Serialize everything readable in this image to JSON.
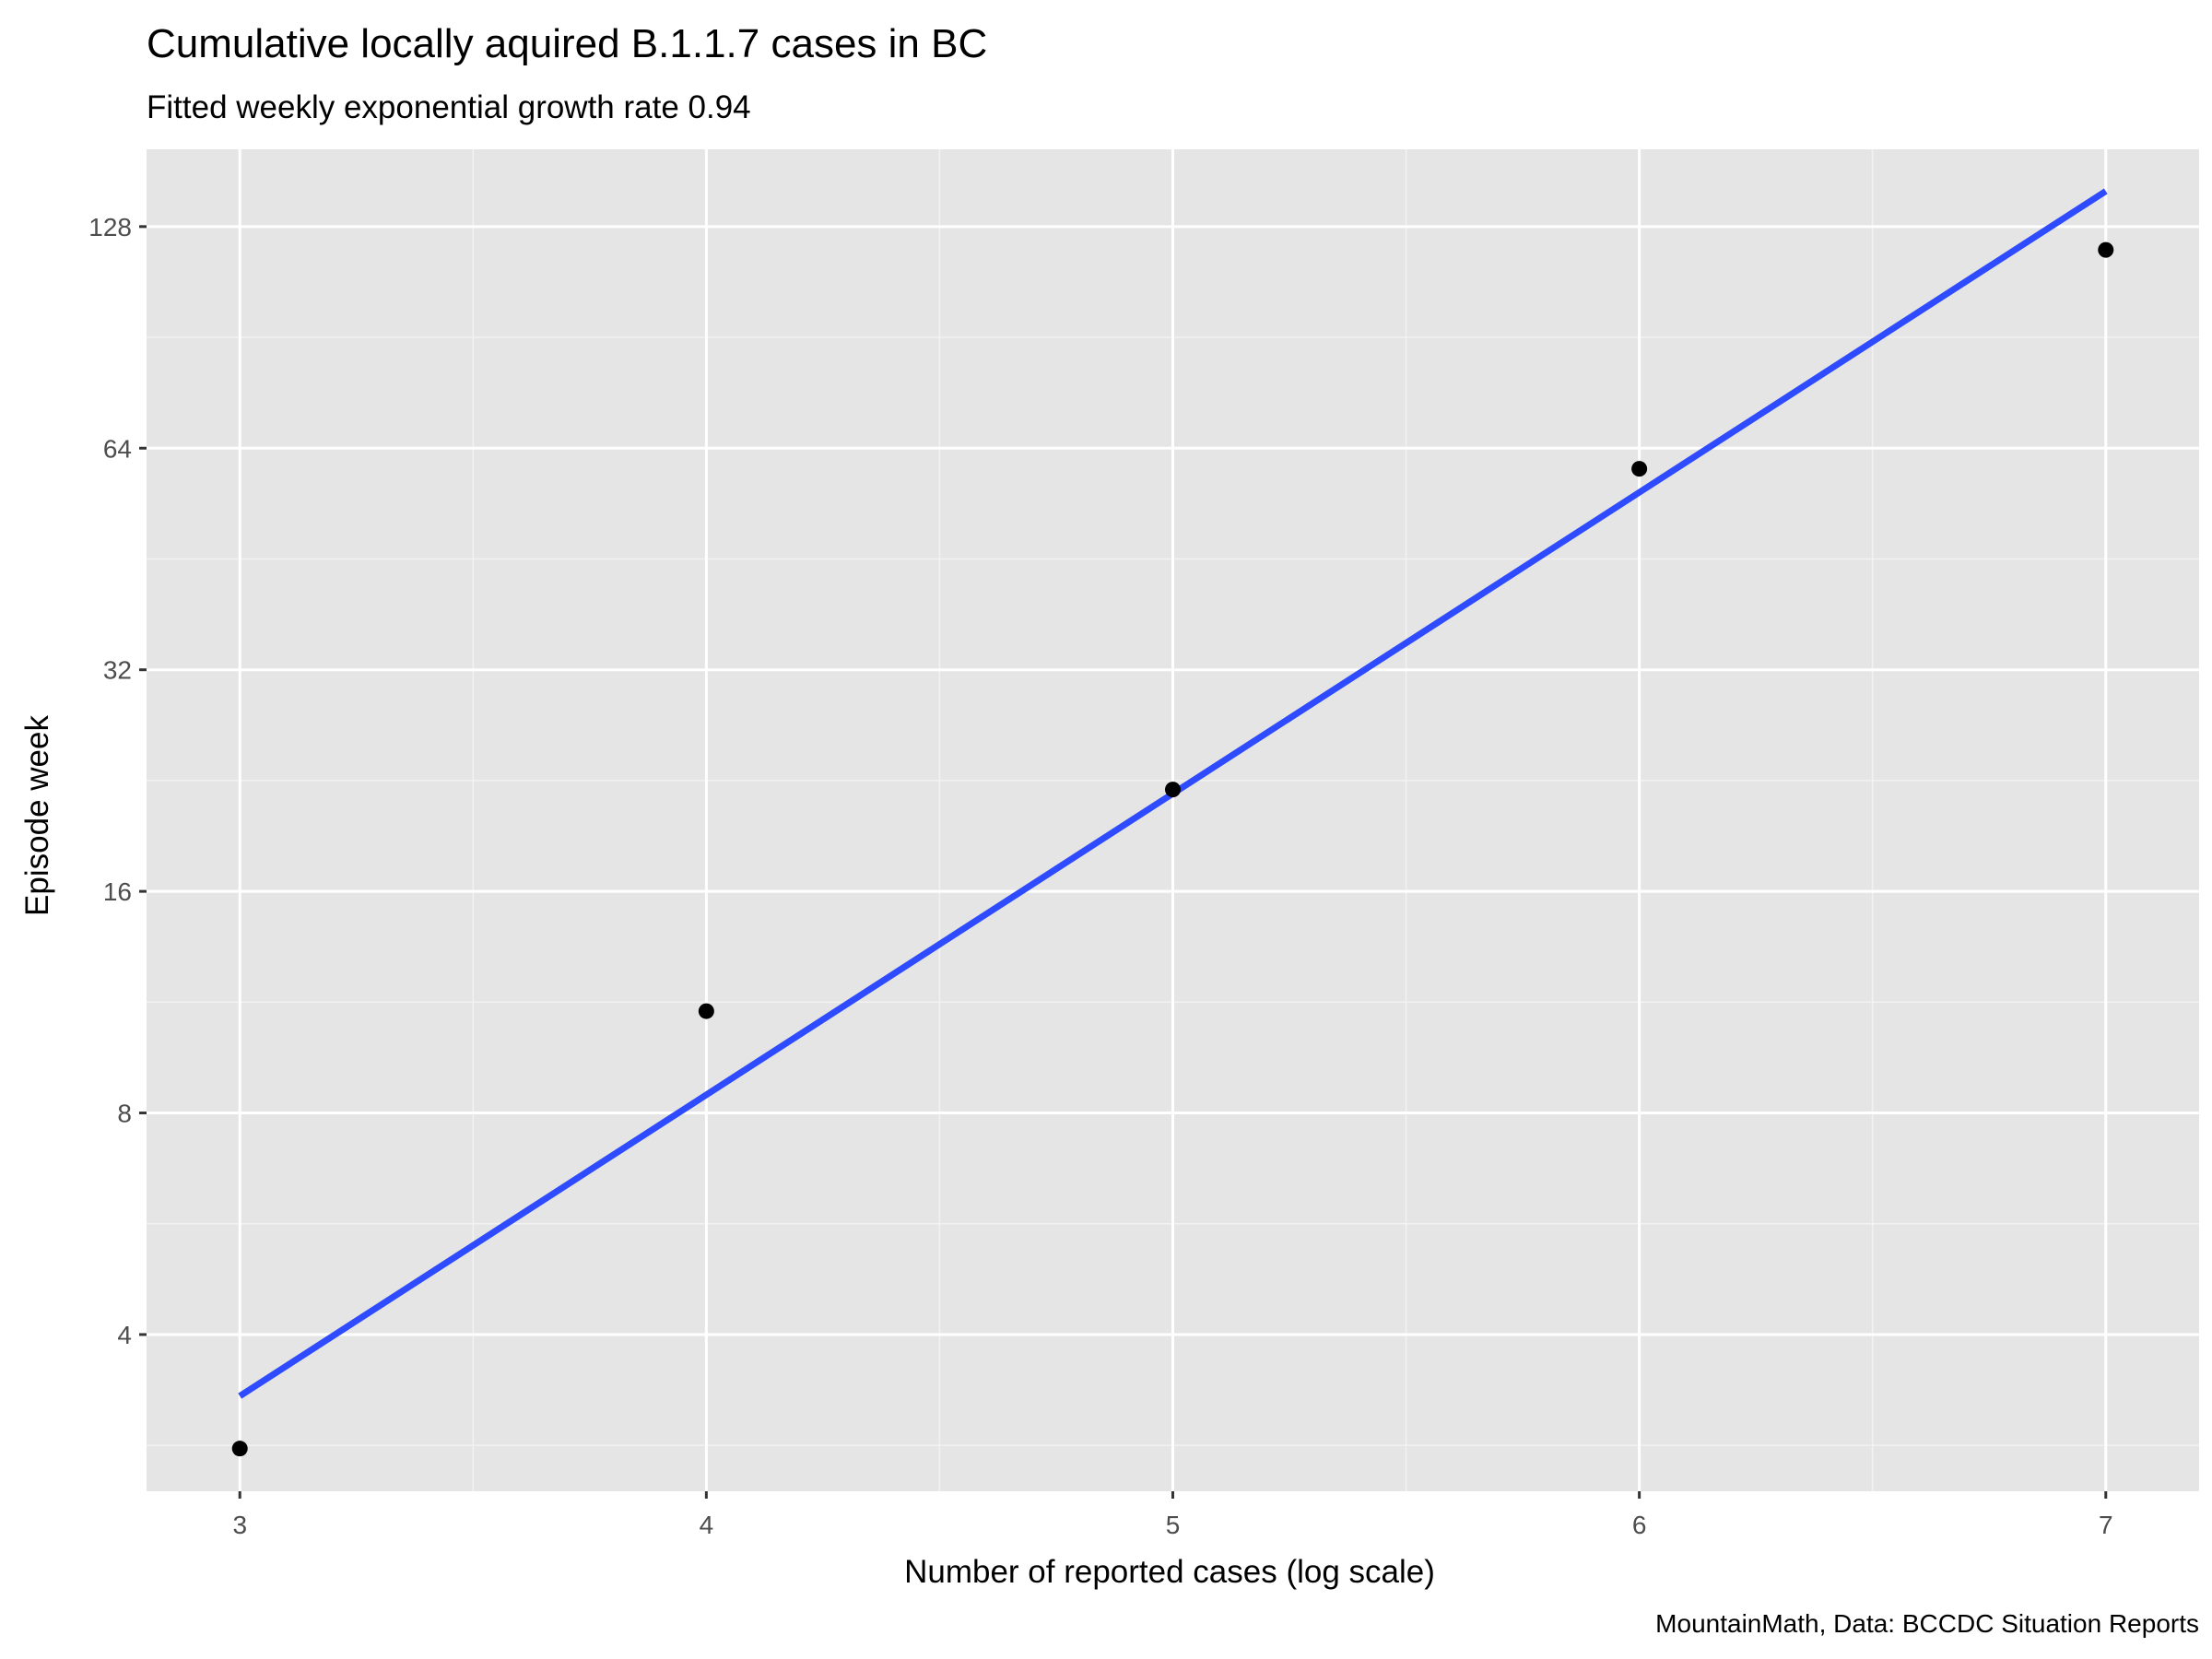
{
  "chart_data": {
    "type": "scatter",
    "title": "Cumulative locally aquired B.1.1.7 cases in BC",
    "subtitle": "Fitted weekly exponential growth rate 0.94",
    "xlabel": "Number of reported cases (log scale)",
    "ylabel": "Episode week",
    "caption": "MountainMath, Data: BCCDC Situation Reports",
    "x_ticks": [
      3,
      4,
      5,
      6,
      7
    ],
    "y_ticks": [
      4,
      8,
      16,
      32,
      64,
      128
    ],
    "xlim": [
      2.8,
      7.2
    ],
    "ylim": [
      2.45,
      163
    ],
    "y_scale": "log2",
    "grid": true,
    "series": [
      {
        "kind": "points",
        "x": [
          3,
          4,
          5,
          6,
          7
        ],
        "y": [
          2.8,
          11,
          22,
          60,
          119
        ]
      },
      {
        "kind": "fit-line",
        "x": [
          3,
          7
        ],
        "y": [
          3.3,
          143
        ]
      }
    ],
    "colors": {
      "panel": "#e5e5e5",
      "grid_major": "#ffffff",
      "grid_minor": "#f2f2f2",
      "points": "#000000",
      "fit_line": "#2e4bff"
    }
  }
}
